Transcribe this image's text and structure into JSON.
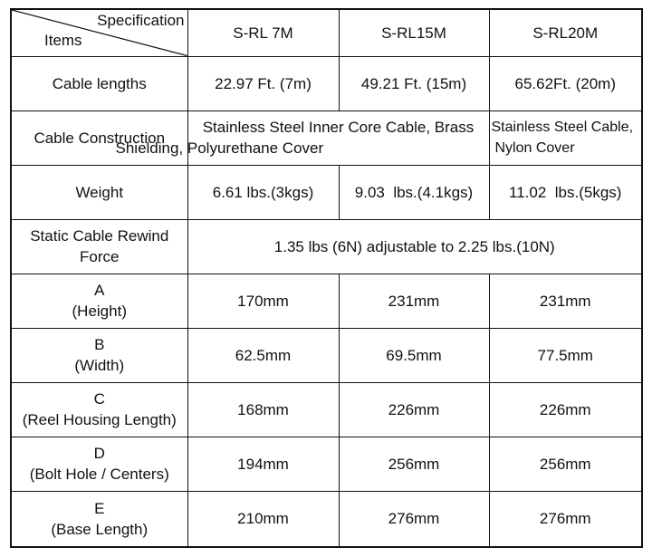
{
  "header": {
    "corner_top": "Specification",
    "corner_bottom": "Items",
    "models": [
      "S-RL 7M",
      "S-RL15M",
      "S-RL20M"
    ]
  },
  "rows": {
    "cable_lengths": {
      "label": "Cable lengths",
      "values": [
        "22.97 Ft. (7m)",
        "49.21 Ft. (15m)",
        "65.62Ft. (20m)"
      ]
    },
    "cable_construction": {
      "label": "Cable Construction",
      "span_value_line1": "Stainless Steel Inner Core Cable, Brass",
      "span_value_line2": "Shielding, Polyurethane Cover",
      "value_line1": "Stainless Steel Cable,",
      "value_line2": "Nylon Cover"
    },
    "weight": {
      "label": "Weight",
      "values": [
        "6.61 lbs.(3kgs)",
        "9.03  lbs.(4.1kgs)",
        "11.02  lbs.(5kgs)"
      ]
    },
    "rewind_force": {
      "label_line1": "Static Cable Rewind",
      "label_line2": "Force",
      "value": "1.35 lbs (6N) adjustable to 2.25 lbs.(10N)"
    },
    "a": {
      "letter": "A",
      "desc": "(Height)",
      "values": [
        "170mm",
        "231mm",
        "231mm"
      ]
    },
    "b": {
      "letter": "B",
      "desc": "(Width)",
      "values": [
        "62.5mm",
        "69.5mm",
        "77.5mm"
      ]
    },
    "c": {
      "letter": "C",
      "desc": "(Reel Housing Length)",
      "values": [
        "168mm",
        "226mm",
        "226mm"
      ]
    },
    "d": {
      "letter": "D",
      "desc": "(Bolt Hole / Centers)",
      "values": [
        "194mm",
        "256mm",
        "256mm"
      ]
    },
    "e": {
      "letter": "E",
      "desc": "(Base Length)",
      "values": [
        "210mm",
        "276mm",
        "276mm"
      ]
    }
  }
}
